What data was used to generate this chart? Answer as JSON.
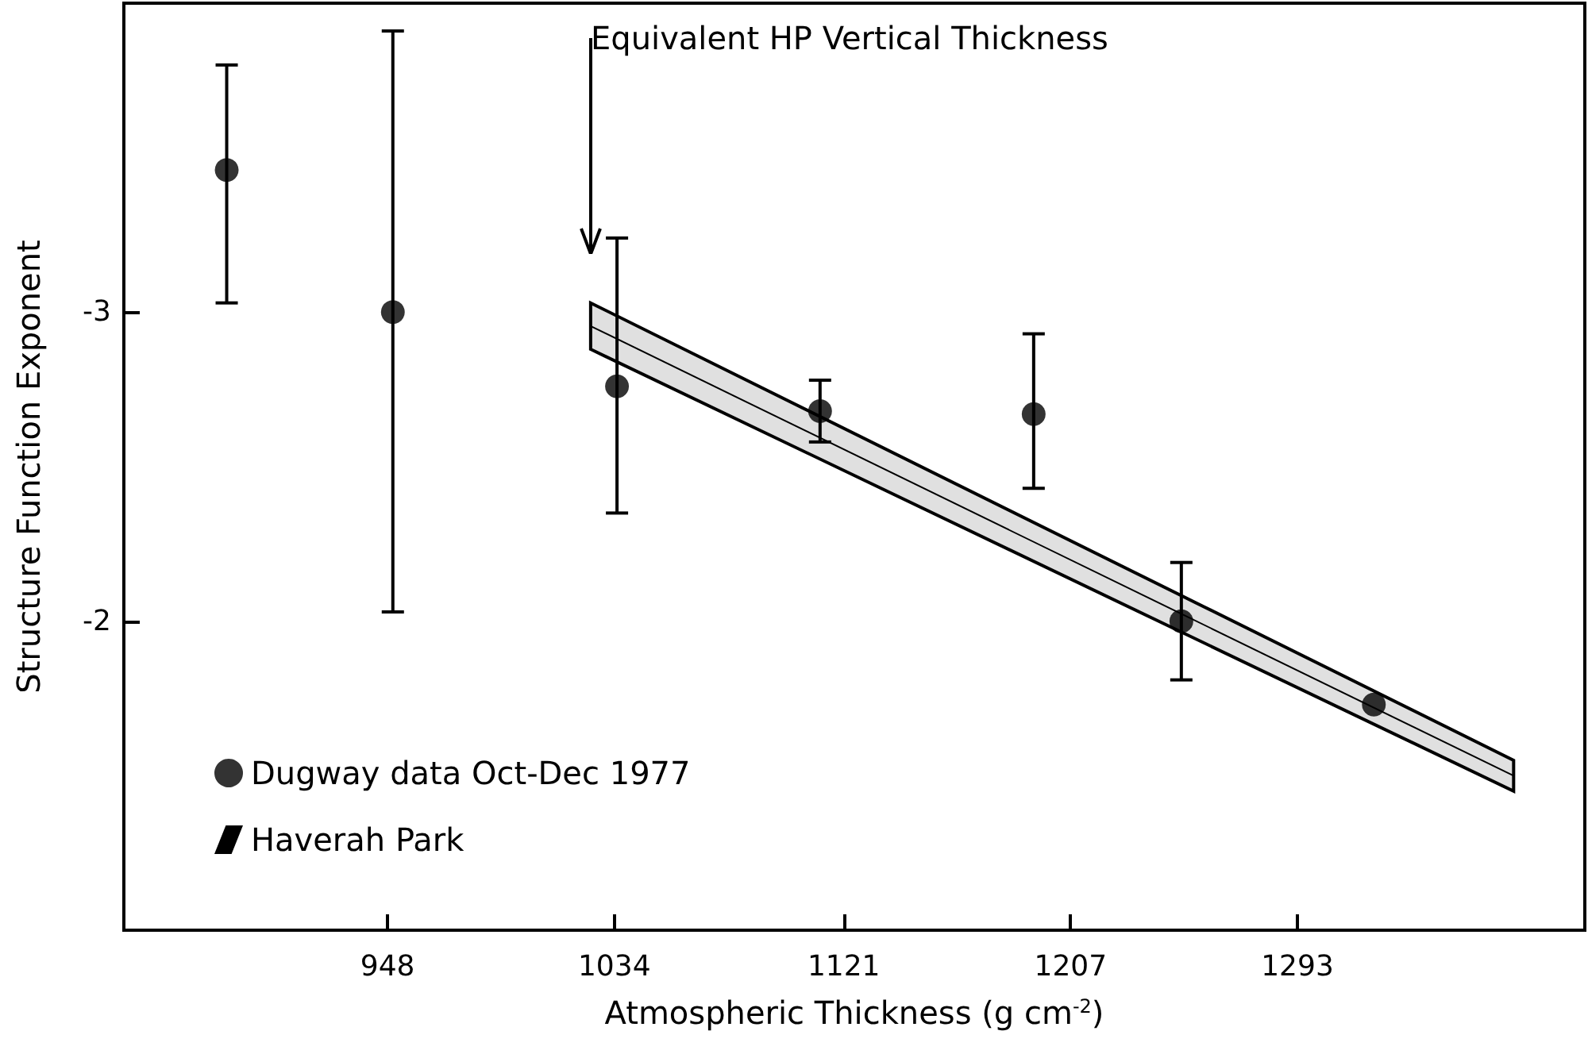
{
  "chart_data": {
    "type": "scatter",
    "xlabel": "Atmospheric Thickness (g cm$^{-2}$)",
    "ylabel": "Structure Function Exponent",
    "xlim": [
      848,
      1402
    ],
    "xticks": [
      948,
      1034,
      1121,
      1207,
      1293
    ],
    "ylim": [
      -1,
      -4
    ],
    "yticks": [
      -3,
      -2
    ],
    "grid": false,
    "legend": "bottom left",
    "marker": "circle",
    "annotations": [
      "Equivalent HP Vertical Thickness"
    ],
    "series": [
      {
        "name": "Dugway data Oct-Dec 1977",
        "color": "#000000",
        "x": [
          887,
          950,
          1035,
          1112,
          1193,
          1249,
          1322
        ],
        "values": [
          -3.46,
          -3.0,
          -2.76,
          -2.68,
          -2.67,
          -2.0,
          -1.73
        ],
        "errors": [
          [
            -3.8,
            -3.03
          ],
          [
            -3.91,
            -2.03
          ],
          [
            -3.24,
            -2.35
          ],
          [
            -2.78,
            -2.58
          ],
          [
            -2.93,
            -2.43
          ],
          [
            -2.19,
            -1.81
          ],
          null
        ]
      },
      {
        "name": "Haverah Park",
        "type": "line",
        "color": "#000000",
        "marker": "none",
        "x": [
          1025,
          1375
        ],
        "values": [
          -2.955,
          -1.5
        ],
        "lower": [
          -3.03,
          -1.55
        ],
        "upper": [
          -2.88,
          -1.45
        ]
      }
    ]
  }
}
